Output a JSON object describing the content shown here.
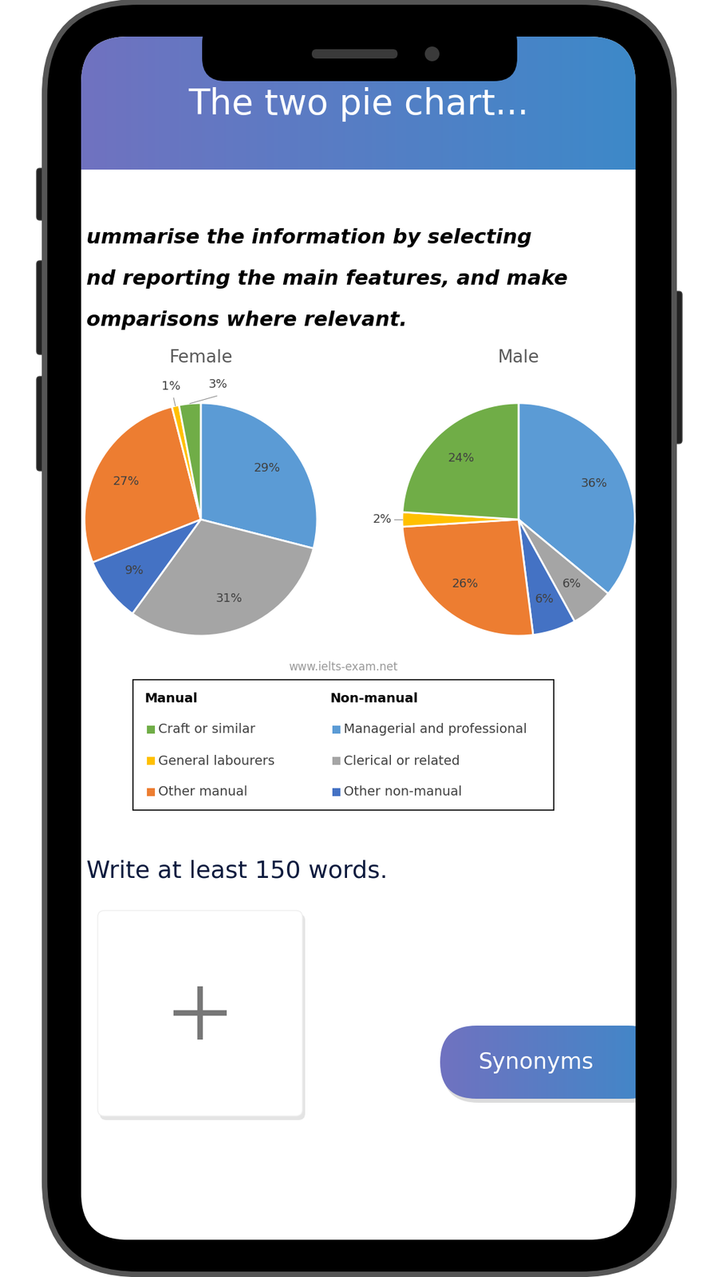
{
  "screen": {
    "header": "The two pie chart...",
    "instructions": [
      "ummarise the information by selecting",
      "nd reporting the main features, and make",
      "omparisons where relevant."
    ],
    "watermark": "www.ielts-exam.net",
    "legend": [
      {
        "heading": "Manual",
        "items": [
          "Craft or similar",
          "General labourers",
          "Other manual"
        ]
      },
      {
        "heading": "Non-manual",
        "items": [
          "Managerial and professional",
          "Clerical or related",
          "Other non-manual"
        ]
      }
    ],
    "prompt": "Write at least 150 words.",
    "button": "Synonyms"
  },
  "chart_data": [
    {
      "type": "pie",
      "title": "Female",
      "categories": [
        "Managerial and professional",
        "Clerical or related",
        "Other non-manual",
        "Other manual",
        "General labourers",
        "Craft or similar"
      ],
      "values": [
        29,
        31,
        9,
        27,
        1,
        3
      ],
      "value_labels": [
        "29%",
        "31%",
        "9%",
        "27%",
        "1%",
        "3%"
      ],
      "colors": [
        "#5b9bd5",
        "#a5a5a5",
        "#4472c4",
        "#ed7d31",
        "#ffc000",
        "#70ad47"
      ],
      "data_labels": true
    },
    {
      "type": "pie",
      "title": "Male",
      "categories": [
        "Managerial and professional",
        "Clerical or related",
        "Other non-manual",
        "Other manual",
        "General labourers",
        "Craft or similar"
      ],
      "values": [
        36,
        6,
        6,
        26,
        2,
        24
      ],
      "value_labels": [
        "36%",
        "6%",
        "6%",
        "26%",
        "2%",
        "24%"
      ],
      "colors": [
        "#5b9bd5",
        "#a5a5a5",
        "#4472c4",
        "#ed7d31",
        "#ffc000",
        "#70ad47"
      ],
      "data_labels": true
    }
  ]
}
